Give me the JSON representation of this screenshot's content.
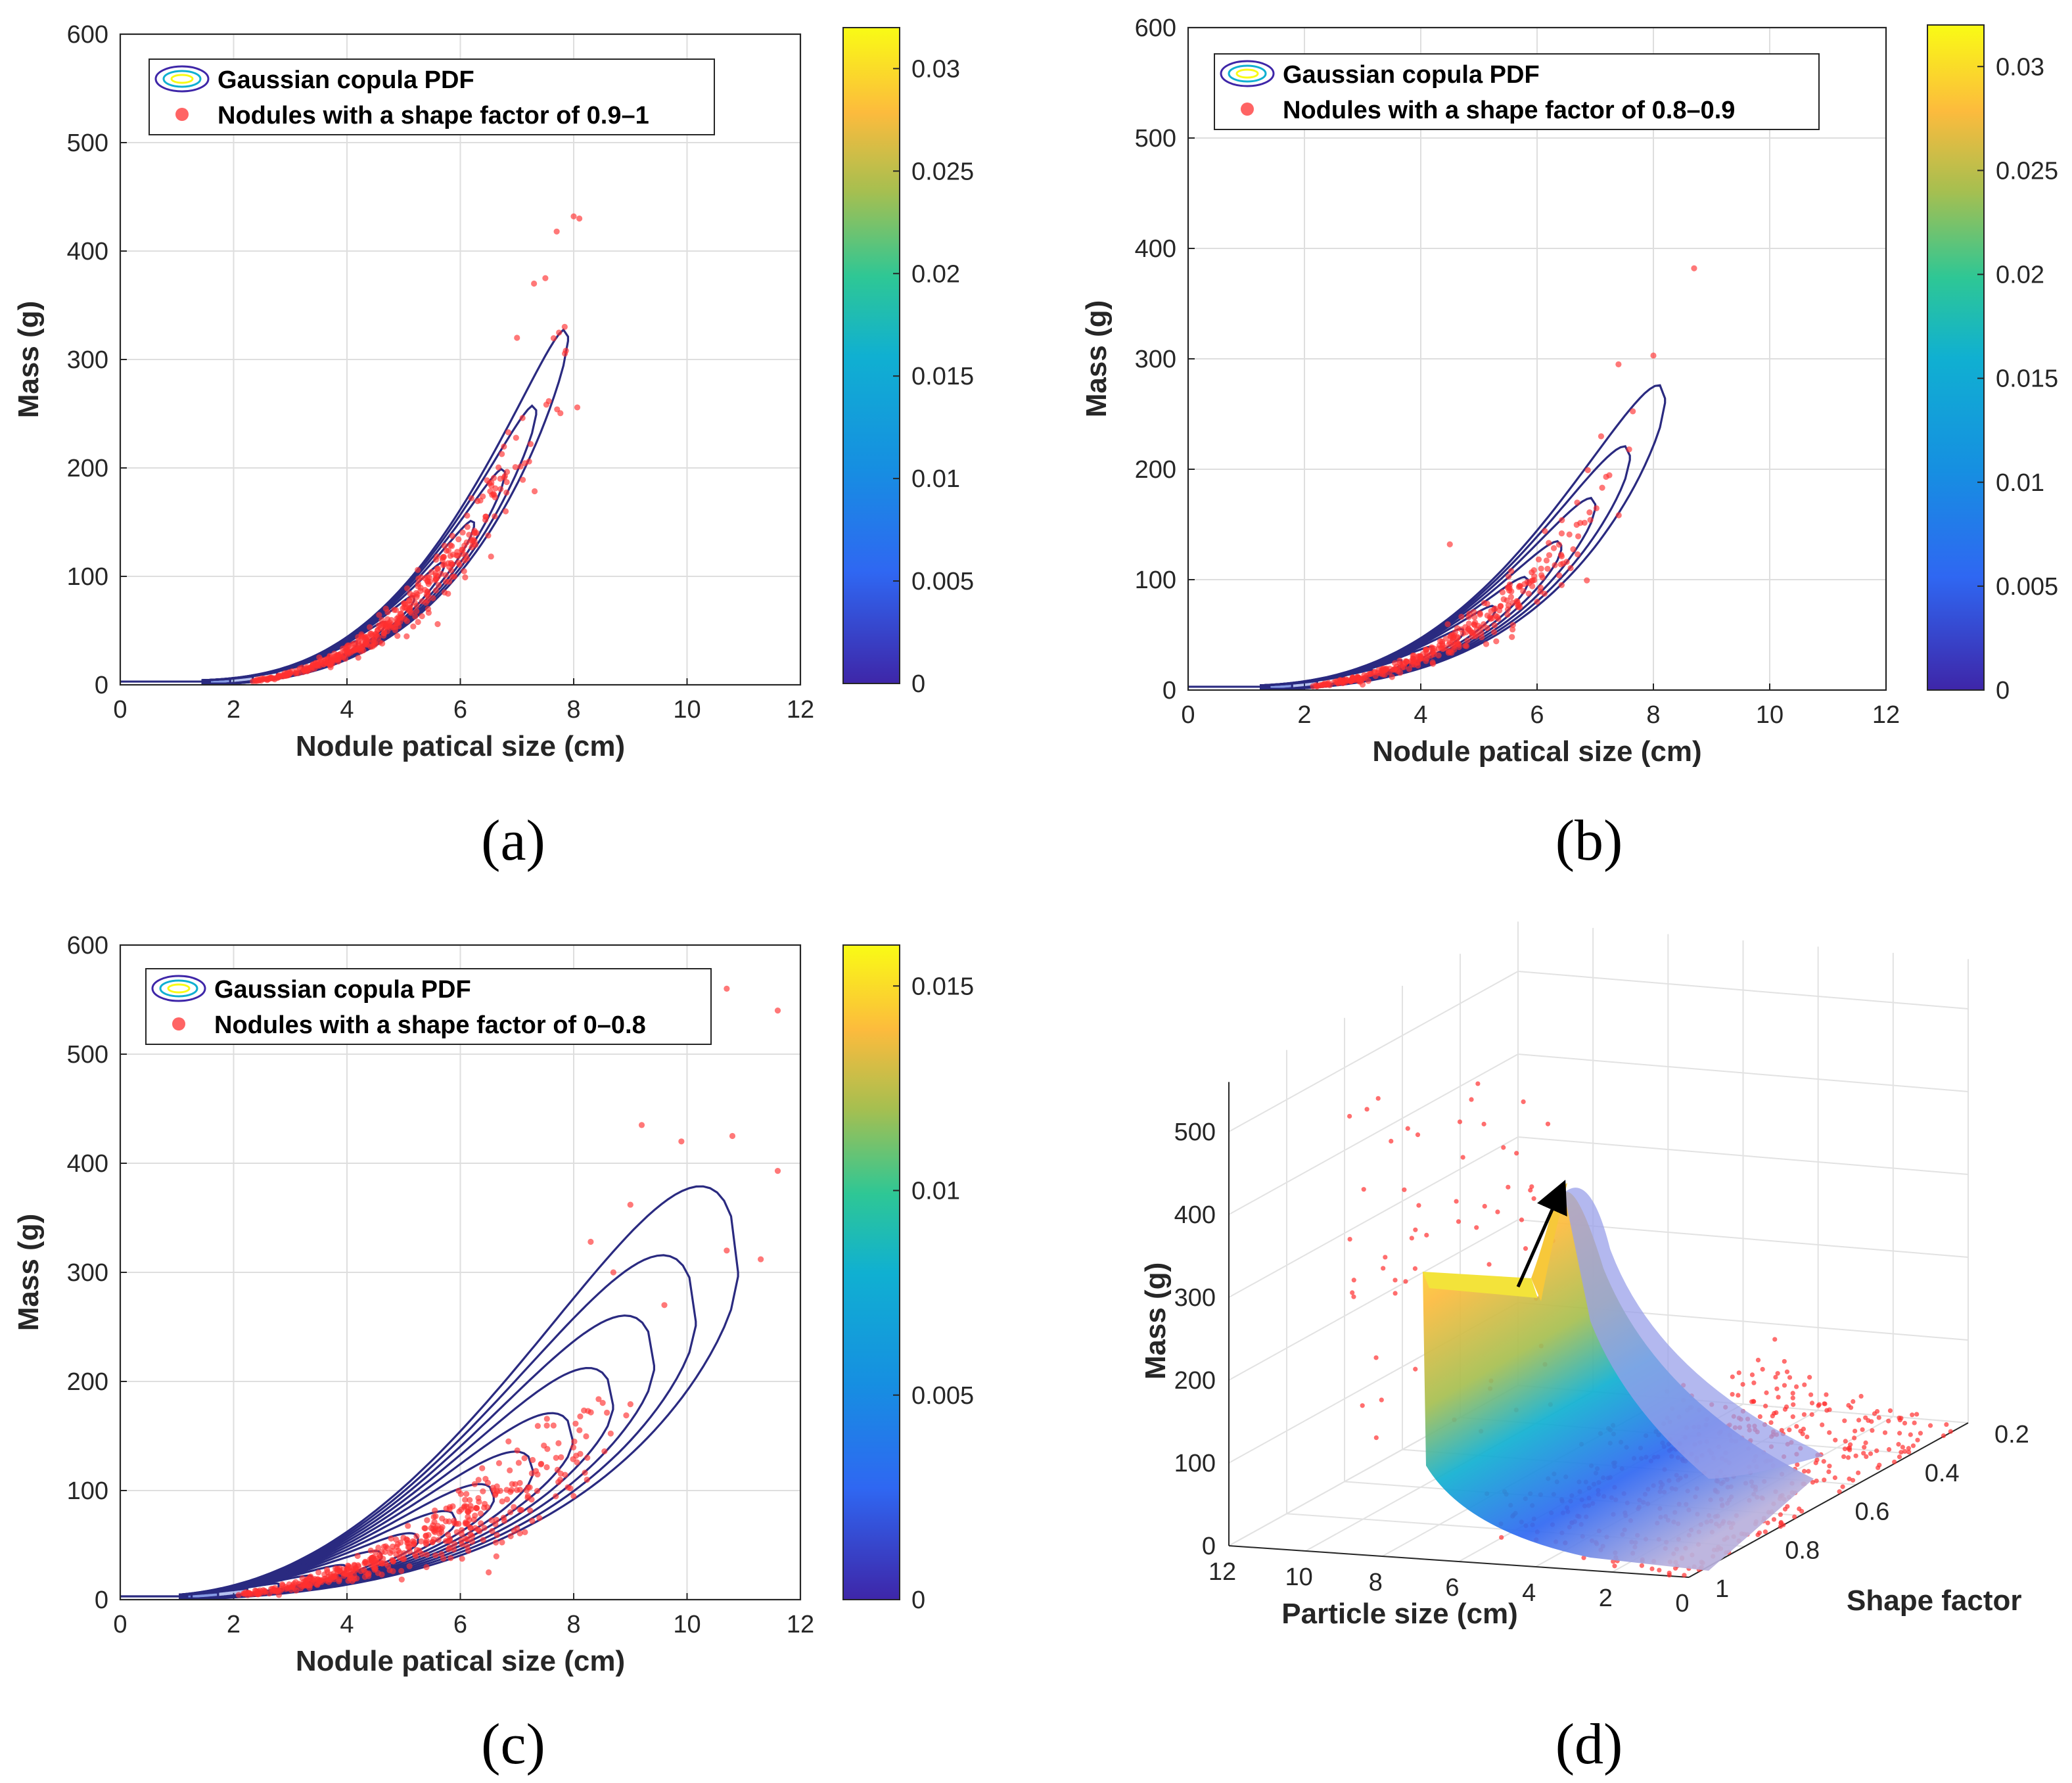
{
  "chart_data": [
    {
      "panel": "(a)",
      "type": "contour+scatter",
      "xlabel": "Nodule patical size (cm)",
      "ylabel": "Mass (g)",
      "xlim": [
        0,
        12
      ],
      "ylim": [
        0,
        600
      ],
      "xticks": [
        "0",
        "2",
        "4",
        "6",
        "8",
        "10",
        "12"
      ],
      "yticks": [
        "0",
        "100",
        "200",
        "300",
        "400",
        "500",
        "600"
      ],
      "grid": true,
      "legend": {
        "position": "top-left",
        "entries": [
          "Gaussian copula PDF",
          "Nodules with a shape factor of 0.9–1"
        ]
      },
      "colorbar": {
        "min": 0,
        "max": 0.032,
        "ticks": [
          "0",
          "0.005",
          "0.01",
          "0.015",
          "0.02",
          "0.025",
          "0.03"
        ]
      },
      "curve_model": {
        "a": 0.85,
        "p": 3.0,
        "slope": 0.13,
        "k_min": 0.72,
        "k_max": 1.35,
        "x_start": 1.3,
        "x_end": 7.9,
        "peak": [
          7.85,
          462
        ],
        "levels": 14
      },
      "points_trend": {
        "x_range": [
          1.6,
          8.1
        ],
        "n": 420,
        "spread": 0.12
      },
      "outliers": [
        [
          8.0,
          432
        ],
        [
          8.1,
          430
        ],
        [
          7.7,
          418
        ],
        [
          7.5,
          375
        ],
        [
          7.3,
          370
        ],
        [
          6.8,
          160
        ],
        [
          5.6,
          56
        ],
        [
          4.2,
          25
        ],
        [
          7.0,
          320
        ]
      ]
    },
    {
      "panel": "(b)",
      "type": "contour+scatter",
      "xlabel": "Nodule patical size (cm)",
      "ylabel": "Mass (g)",
      "xlim": [
        0,
        12
      ],
      "ylim": [
        0,
        600
      ],
      "xticks": [
        "0",
        "2",
        "4",
        "6",
        "8",
        "10",
        "12"
      ],
      "yticks": [
        "0",
        "100",
        "200",
        "300",
        "400",
        "500",
        "600"
      ],
      "grid": true,
      "legend": {
        "position": "top-left",
        "entries": [
          "Gaussian copula PDF",
          "Nodules with a shape factor of 0.8–0.9"
        ]
      },
      "colorbar": {
        "min": 0,
        "max": 0.032,
        "ticks": [
          "0",
          "0.005",
          "0.01",
          "0.015",
          "0.02",
          "0.025",
          "0.03"
        ]
      },
      "curve_model": {
        "a": 0.95,
        "p": 2.75,
        "slope": 0.12,
        "k_min": 0.6,
        "k_max": 1.5,
        "x_start": 1.1,
        "x_end": 8.2,
        "peak": [
          8.1,
          398
        ],
        "levels": 14
      },
      "points_trend": {
        "x_range": [
          1.4,
          7.8
        ],
        "n": 320,
        "spread": 0.14
      },
      "outliers": [
        [
          8.7,
          382
        ],
        [
          8.0,
          303
        ],
        [
          7.4,
          295
        ],
        [
          6.0,
          80
        ],
        [
          4.5,
          132
        ],
        [
          3.0,
          5
        ]
      ]
    },
    {
      "panel": "(c)",
      "type": "contour+scatter",
      "xlabel": "Nodule patical size (cm)",
      "ylabel": "Mass (g)",
      "xlim": [
        0,
        12
      ],
      "ylim": [
        0,
        600
      ],
      "xticks": [
        "0",
        "2",
        "4",
        "6",
        "8",
        "10",
        "12"
      ],
      "yticks": [
        "0",
        "100",
        "200",
        "300",
        "400",
        "500",
        "600"
      ],
      "grid": true,
      "legend": {
        "position": "top-left",
        "entries": [
          "Gaussian copula PDF",
          "Nodules with a shape factor of 0–0.8"
        ]
      },
      "colorbar": {
        "min": 0,
        "max": 0.016,
        "ticks": [
          "0",
          "0.005",
          "0.01",
          "0.015"
        ]
      },
      "curve_model": {
        "a": 1.3,
        "p": 2.3,
        "slope": 0.09,
        "k_min": 0.45,
        "k_max": 2.3,
        "x_start": 0.9,
        "x_end": 10.9,
        "peak": [
          9.8,
          495
        ],
        "levels": 16
      },
      "points_trend": {
        "x_range": [
          1.2,
          9.5
        ],
        "n": 460,
        "spread": 0.2
      },
      "outliers": [
        [
          10.7,
          560
        ],
        [
          11.6,
          540
        ],
        [
          10.8,
          425
        ],
        [
          11.6,
          393
        ],
        [
          9.2,
          435
        ],
        [
          9.9,
          420
        ],
        [
          11.3,
          312
        ],
        [
          10.7,
          320
        ],
        [
          9.6,
          270
        ],
        [
          9.0,
          362
        ],
        [
          8.3,
          328
        ],
        [
          8.7,
          300
        ],
        [
          6.5,
          25
        ]
      ]
    },
    {
      "panel": "(d)",
      "type": "surface3d+scatter",
      "xlabel": "Particle size (cm)",
      "ylabel": "Shape factor",
      "zlabel": "Mass (g)",
      "xticks": [
        "12",
        "10",
        "8",
        "6",
        "4",
        "2",
        "0"
      ],
      "yticks": [
        "1",
        "0.8",
        "0.6",
        "0.4",
        "0.2"
      ],
      "zticks": [
        "0",
        "100",
        "200",
        "300",
        "400",
        "500"
      ],
      "zlim": [
        0,
        500
      ],
      "grid": true
    }
  ],
  "panel_labels": [
    "(a)",
    "(b)",
    "(c)",
    "(d)"
  ],
  "colors": {
    "contour": "#2a2a80",
    "points": "#ff3030",
    "colormap": [
      "#3e26a8",
      "#2f67f2",
      "#10b0d1",
      "#2ec795",
      "#a6bf50",
      "#fcbb3d",
      "#f9fb15"
    ]
  }
}
